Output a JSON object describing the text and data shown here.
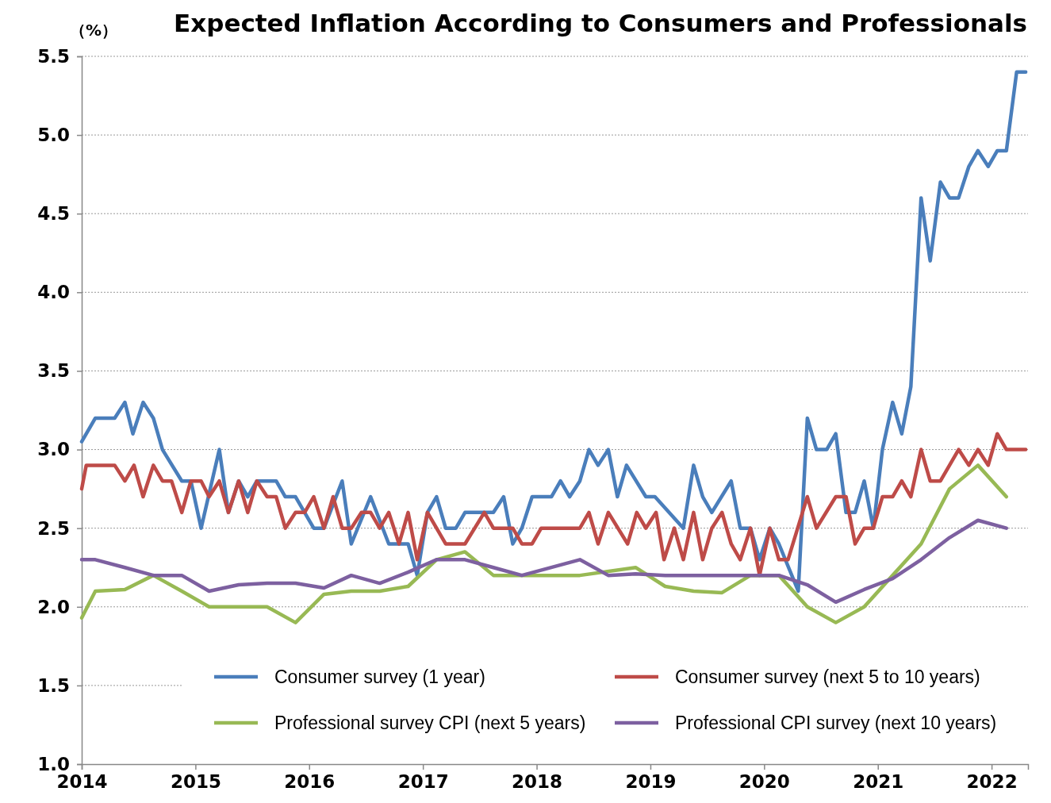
{
  "chart_data": {
    "type": "line",
    "title": "Expected Inflation According to Consumers and Professionals",
    "ylabel": "（%）",
    "xlim": [
      2014,
      2022.32
    ],
    "xticks": [
      2014,
      2015,
      2016,
      2017,
      2018,
      2019,
      2020,
      2021,
      2022
    ],
    "ylim": [
      1,
      5.5
    ],
    "yticks": [
      {
        "value": 1,
        "label": "1.0"
      },
      {
        "value": 1.5,
        "label": "1.5"
      },
      {
        "value": 2,
        "label": "2.0"
      },
      {
        "value": 2.5,
        "label": "2.5"
      },
      {
        "value": 3,
        "label": "3.0"
      },
      {
        "value": 3.5,
        "label": "3.5"
      },
      {
        "value": 4,
        "label": "4.0"
      },
      {
        "value": 4.5,
        "label": "4.5"
      },
      {
        "value": 5,
        "label": "5.0"
      },
      {
        "value": 5.5,
        "label": "5.5"
      }
    ],
    "grid": "y",
    "legend": "bottom",
    "marker": "none",
    "line_style": "solid",
    "series": [
      {
        "name": "Consumer survey (1 year)",
        "color": "#4a7ebb",
        "x": [
          2014.0,
          2014.12,
          2014.29,
          2014.38,
          2014.45,
          2014.54,
          2014.63,
          2014.71,
          2014.88,
          2014.96,
          2015.05,
          2015.21,
          2015.29,
          2015.38,
          2015.46,
          2015.54,
          2015.71,
          2015.79,
          2015.88,
          2016.04,
          2016.13,
          2016.29,
          2016.37,
          2016.54,
          2016.7,
          2016.87,
          2016.95,
          2017.04,
          2017.12,
          2017.2,
          2017.29,
          2017.37,
          2017.62,
          2017.71,
          2017.79,
          2017.87,
          2017.96,
          2018.13,
          2018.21,
          2018.29,
          2018.38,
          2018.46,
          2018.54,
          2018.63,
          2018.71,
          2018.79,
          2018.96,
          2019.04,
          2019.29,
          2019.38,
          2019.46,
          2019.54,
          2019.71,
          2019.79,
          2019.88,
          2019.96,
          2020.05,
          2020.13,
          2020.3,
          2020.38,
          2020.46,
          2020.55,
          2020.63,
          2020.72,
          2020.8,
          2020.88,
          2020.96,
          2021.04,
          2021.13,
          2021.21,
          2021.29,
          2021.38,
          2021.46,
          2021.55,
          2021.63,
          2021.71,
          2021.8,
          2021.88,
          2021.97,
          2022.05,
          2022.13,
          2022.22,
          2022.3
        ],
        "values": [
          3.05,
          3.2,
          3.2,
          3.3,
          3.1,
          3.3,
          3.2,
          3.0,
          2.8,
          2.8,
          2.5,
          3.0,
          2.6,
          2.8,
          2.7,
          2.8,
          2.8,
          2.7,
          2.7,
          2.5,
          2.5,
          2.8,
          2.4,
          2.7,
          2.4,
          2.4,
          2.2,
          2.6,
          2.7,
          2.5,
          2.5,
          2.6,
          2.6,
          2.7,
          2.4,
          2.5,
          2.7,
          2.7,
          2.8,
          2.7,
          2.8,
          3.0,
          2.9,
          3.0,
          2.7,
          2.9,
          2.7,
          2.7,
          2.5,
          2.9,
          2.7,
          2.6,
          2.8,
          2.5,
          2.5,
          2.3,
          2.5,
          2.4,
          2.1,
          3.2,
          3.0,
          3.0,
          3.1,
          2.6,
          2.6,
          2.8,
          2.5,
          3.0,
          3.3,
          3.1,
          3.4,
          4.6,
          4.2,
          4.7,
          4.6,
          4.6,
          4.8,
          4.9,
          4.8,
          4.9,
          4.9,
          5.4,
          5.4
        ]
      },
      {
        "name": "Consumer survey (next 5 to 10 years)",
        "color": "#be4b48",
        "x": [
          2014.0,
          2014.04,
          2014.29,
          2014.38,
          2014.46,
          2014.54,
          2014.63,
          2014.71,
          2014.79,
          2014.88,
          2014.96,
          2015.05,
          2015.12,
          2015.21,
          2015.29,
          2015.38,
          2015.46,
          2015.54,
          2015.63,
          2015.71,
          2015.79,
          2015.88,
          2015.96,
          2016.04,
          2016.13,
          2016.21,
          2016.29,
          2016.37,
          2016.46,
          2016.54,
          2016.62,
          2016.7,
          2016.79,
          2016.87,
          2016.95,
          2017.04,
          2017.2,
          2017.37,
          2017.54,
          2017.62,
          2017.79,
          2017.87,
          2017.96,
          2018.04,
          2018.38,
          2018.46,
          2018.54,
          2018.63,
          2018.8,
          2018.88,
          2018.96,
          2019.05,
          2019.12,
          2019.21,
          2019.29,
          2019.38,
          2019.46,
          2019.54,
          2019.63,
          2019.71,
          2019.79,
          2019.88,
          2019.96,
          2020.05,
          2020.13,
          2020.21,
          2020.38,
          2020.46,
          2020.63,
          2020.72,
          2020.8,
          2020.88,
          2020.96,
          2021.04,
          2021.13,
          2021.21,
          2021.29,
          2021.38,
          2021.46,
          2021.55,
          2021.71,
          2021.8,
          2021.88,
          2021.97,
          2022.05,
          2022.13,
          2022.3
        ],
        "values": [
          2.75,
          2.9,
          2.9,
          2.8,
          2.9,
          2.7,
          2.9,
          2.8,
          2.8,
          2.6,
          2.8,
          2.8,
          2.7,
          2.8,
          2.6,
          2.8,
          2.6,
          2.8,
          2.7,
          2.7,
          2.5,
          2.6,
          2.6,
          2.7,
          2.5,
          2.7,
          2.5,
          2.5,
          2.6,
          2.6,
          2.5,
          2.6,
          2.4,
          2.6,
          2.3,
          2.6,
          2.4,
          2.4,
          2.6,
          2.5,
          2.5,
          2.4,
          2.4,
          2.5,
          2.5,
          2.6,
          2.4,
          2.6,
          2.4,
          2.6,
          2.5,
          2.6,
          2.3,
          2.5,
          2.3,
          2.6,
          2.3,
          2.5,
          2.6,
          2.4,
          2.3,
          2.5,
          2.2,
          2.5,
          2.3,
          2.3,
          2.7,
          2.5,
          2.7,
          2.7,
          2.4,
          2.5,
          2.5,
          2.7,
          2.7,
          2.8,
          2.7,
          3.0,
          2.8,
          2.8,
          3.0,
          2.9,
          3.0,
          2.9,
          3.1,
          3.0,
          3.0
        ]
      },
      {
        "name": "Professional survey CPI (next 5 years)",
        "color": "#98b954",
        "x": [
          2014.0,
          2014.12,
          2014.38,
          2014.63,
          2014.88,
          2015.12,
          2015.63,
          2015.88,
          2016.13,
          2016.37,
          2016.62,
          2016.87,
          2017.12,
          2017.37,
          2017.62,
          2018.38,
          2018.87,
          2019.13,
          2019.38,
          2019.63,
          2019.88,
          2020.13,
          2020.38,
          2020.63,
          2020.88,
          2021.13,
          2021.38,
          2021.63,
          2021.88,
          2022.13
        ],
        "values": [
          1.93,
          2.1,
          2.11,
          2.2,
          2.1,
          2.0,
          2.0,
          1.9,
          2.08,
          2.1,
          2.1,
          2.13,
          2.3,
          2.35,
          2.2,
          2.2,
          2.25,
          2.13,
          2.1,
          2.09,
          2.2,
          2.2,
          2.0,
          1.9,
          2.0,
          2.2,
          2.4,
          2.75,
          2.9,
          2.7
        ]
      },
      {
        "name": "Professional CPI survey (next 10 years)",
        "color": "#7d60a0",
        "x": [
          2014.0,
          2014.12,
          2014.38,
          2014.63,
          2014.88,
          2015.12,
          2015.38,
          2015.63,
          2015.88,
          2016.13,
          2016.37,
          2016.62,
          2016.87,
          2017.12,
          2017.37,
          2017.62,
          2017.87,
          2018.38,
          2018.63,
          2018.87,
          2019.13,
          2020.13,
          2020.38,
          2020.63,
          2020.88,
          2021.13,
          2021.38,
          2021.63,
          2021.88,
          2022.13
        ],
        "values": [
          2.3,
          2.3,
          2.25,
          2.2,
          2.2,
          2.1,
          2.14,
          2.15,
          2.15,
          2.12,
          2.2,
          2.15,
          2.22,
          2.3,
          2.3,
          2.25,
          2.2,
          2.3,
          2.2,
          2.21,
          2.2,
          2.2,
          2.14,
          2.03,
          2.11,
          2.18,
          2.3,
          2.44,
          2.55,
          2.5
        ]
      }
    ]
  }
}
